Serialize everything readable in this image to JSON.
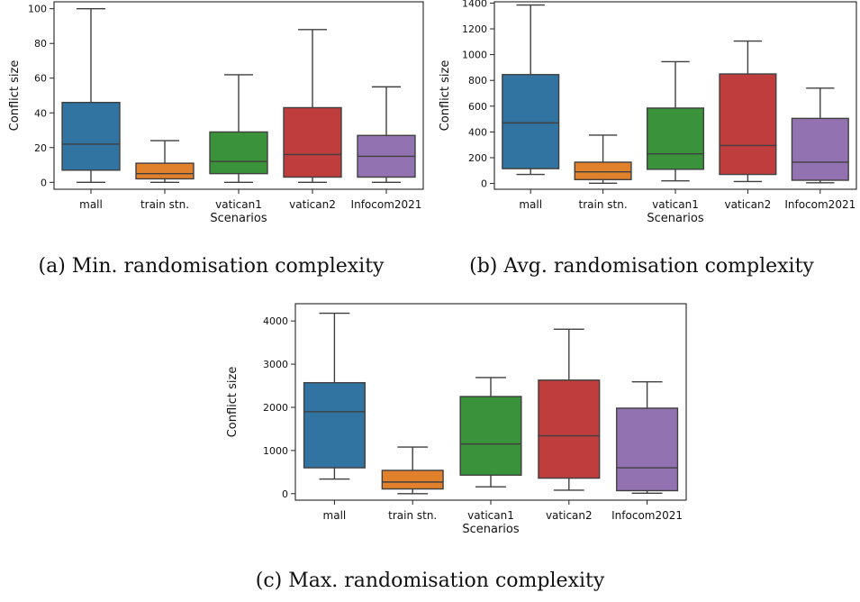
{
  "chart_data": [
    {
      "type": "box",
      "ylabel": "Conflict size",
      "xlabel": "Scenarios",
      "caption": "(a) Min. randomisation complexity",
      "categories": [
        "mall",
        "train stn.",
        "vatican1",
        "vatican2",
        "Infocom2021"
      ],
      "yticks": [
        0,
        20,
        40,
        60,
        80,
        100
      ],
      "ylim": [
        -4,
        104
      ],
      "boxes": [
        {
          "whisker_low": 0,
          "q1": 7,
          "median": 22,
          "q3": 46,
          "whisker_high": 100
        },
        {
          "whisker_low": 0,
          "q1": 2,
          "median": 5,
          "q3": 11,
          "whisker_high": 24
        },
        {
          "whisker_low": 0,
          "q1": 5,
          "median": 12,
          "q3": 29,
          "whisker_high": 62
        },
        {
          "whisker_low": 0,
          "q1": 3,
          "median": 16,
          "q3": 43,
          "whisker_high": 88
        },
        {
          "whisker_low": 0,
          "q1": 3,
          "median": 15,
          "q3": 27,
          "whisker_high": 55
        }
      ]
    },
    {
      "type": "box",
      "ylabel": "Conflict size",
      "xlabel": "Scenarios",
      "caption": "(b) Avg. randomisation complexity",
      "categories": [
        "mall",
        "train stn.",
        "vatican1",
        "vatican2",
        "Infocom2021"
      ],
      "yticks": [
        0,
        200,
        400,
        600,
        800,
        1000,
        1200,
        1400
      ],
      "ylim": [
        -45,
        1410
      ],
      "boxes": [
        {
          "whisker_low": 70,
          "q1": 115,
          "median": 470,
          "q3": 845,
          "whisker_high": 1385
        },
        {
          "whisker_low": 2,
          "q1": 30,
          "median": 90,
          "q3": 165,
          "whisker_high": 375
        },
        {
          "whisker_low": 20,
          "q1": 110,
          "median": 230,
          "q3": 585,
          "whisker_high": 945
        },
        {
          "whisker_low": 15,
          "q1": 70,
          "median": 295,
          "q3": 850,
          "whisker_high": 1105
        },
        {
          "whisker_low": 5,
          "q1": 25,
          "median": 165,
          "q3": 505,
          "whisker_high": 740
        }
      ]
    },
    {
      "type": "box",
      "ylabel": "Conflict size",
      "xlabel": "Scenarios",
      "caption": "(c) Max. randomisation complexity",
      "categories": [
        "mall",
        "train stn.",
        "vatican1",
        "vatican2",
        "Infocom2021"
      ],
      "yticks": [
        0,
        1000,
        2000,
        3000,
        4000
      ],
      "ylim": [
        -150,
        4400
      ],
      "boxes": [
        {
          "whisker_low": 340,
          "q1": 600,
          "median": 1900,
          "q3": 2570,
          "whisker_high": 4180
        },
        {
          "whisker_low": 0,
          "q1": 110,
          "median": 270,
          "q3": 540,
          "whisker_high": 1080
        },
        {
          "whisker_low": 160,
          "q1": 430,
          "median": 1150,
          "q3": 2250,
          "whisker_high": 2690
        },
        {
          "whisker_low": 80,
          "q1": 360,
          "median": 1340,
          "q3": 2630,
          "whisker_high": 3810
        },
        {
          "whisker_low": 10,
          "q1": 70,
          "median": 600,
          "q3": 1980,
          "whisker_high": 2590
        }
      ]
    }
  ],
  "colors": {
    "series": [
      "#3274a1",
      "#e1812c",
      "#3a923a",
      "#c03d3e",
      "#9372b2"
    ],
    "line": "#3f3f3f"
  }
}
